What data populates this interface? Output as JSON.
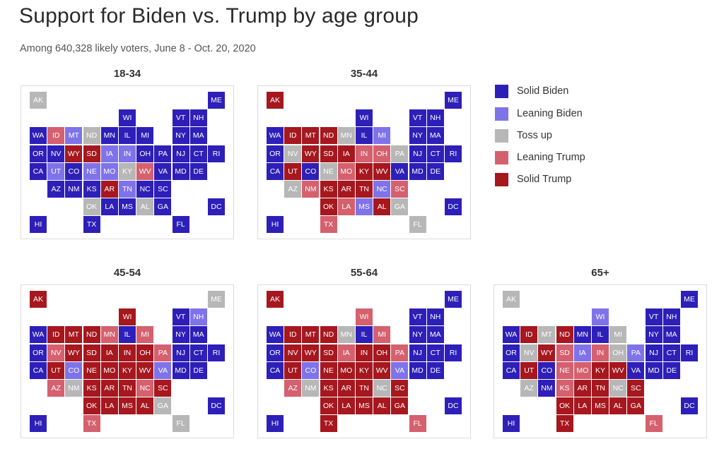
{
  "title": "Support for Biden vs. Trump by age group",
  "subtitle": "Among 640,328 likely voters, June 8 - Oct. 20, 2020",
  "legend": [
    {
      "key": "SB",
      "label": "Solid Biden",
      "color": "#2d1fb8"
    },
    {
      "key": "LB",
      "label": "Leaning Biden",
      "color": "#7f73ea"
    },
    {
      "key": "TU",
      "label": "Toss up",
      "color": "#b7b7b7"
    },
    {
      "key": "LT",
      "label": "Leaning Trump",
      "color": "#d5606e"
    },
    {
      "key": "ST",
      "label": "Solid Trump",
      "color": "#a6171e"
    }
  ],
  "chart_data": {
    "type": "tile-map",
    "row_layout": [
      [
        "AK",
        "",
        "",
        "",
        "",
        "",
        "",
        "",
        "",
        "",
        "ME"
      ],
      [
        "",
        "",
        "",
        "",
        "",
        "WI",
        "",
        "",
        "VT",
        "NH",
        ""
      ],
      [
        "WA",
        "ID",
        "MT",
        "ND",
        "MN",
        "IL",
        "MI",
        "",
        "NY",
        "MA",
        ""
      ],
      [
        "OR",
        "NV",
        "WY",
        "SD",
        "IA",
        "IN",
        "OH",
        "PA",
        "NJ",
        "CT",
        "RI"
      ],
      [
        "CA",
        "UT",
        "CO",
        "NE",
        "MO",
        "KY",
        "WV",
        "VA",
        "MD",
        "DE",
        ""
      ],
      [
        "",
        "AZ",
        "NM",
        "KS",
        "AR",
        "TN",
        "NC",
        "SC",
        "",
        "",
        ""
      ],
      [
        "",
        "",
        "",
        "OK",
        "LA",
        "MS",
        "AL",
        "GA",
        "",
        "",
        "DC"
      ],
      [
        "HI",
        "",
        "",
        "TX",
        "",
        "",
        "",
        "",
        "FL",
        "",
        ""
      ]
    ],
    "panels": [
      {
        "label": "18-34",
        "ratings": {
          "AK": "TU",
          "ME": "SB",
          "WI": "SB",
          "VT": "SB",
          "NH": "SB",
          "WA": "SB",
          "ID": "LT",
          "MT": "LB",
          "ND": "TU",
          "MN": "SB",
          "IL": "SB",
          "MI": "SB",
          "NY": "SB",
          "MA": "SB",
          "OR": "SB",
          "NV": "SB",
          "WY": "ST",
          "SD": "ST",
          "IA": "LB",
          "IN": "LB",
          "OH": "SB",
          "PA": "SB",
          "NJ": "SB",
          "CT": "SB",
          "RI": "SB",
          "CA": "SB",
          "UT": "LB",
          "CO": "SB",
          "NE": "LB",
          "MO": "LB",
          "KY": "TU",
          "WV": "LT",
          "VA": "SB",
          "MD": "SB",
          "DE": "SB",
          "AZ": "SB",
          "NM": "SB",
          "KS": "SB",
          "AR": "ST",
          "TN": "LB",
          "NC": "SB",
          "SC": "SB",
          "OK": "TU",
          "LA": "SB",
          "MS": "SB",
          "AL": "TU",
          "GA": "SB",
          "DC": "SB",
          "HI": "SB",
          "TX": "SB",
          "FL": "SB"
        }
      },
      {
        "label": "35-44",
        "ratings": {
          "AK": "ST",
          "ME": "SB",
          "WI": "SB",
          "VT": "SB",
          "NH": "SB",
          "WA": "SB",
          "ID": "ST",
          "MT": "ST",
          "ND": "ST",
          "MN": "TU",
          "IL": "SB",
          "MI": "LB",
          "NY": "SB",
          "MA": "SB",
          "OR": "SB",
          "NV": "TU",
          "WY": "ST",
          "SD": "ST",
          "IA": "ST",
          "IN": "LT",
          "OH": "LT",
          "PA": "TU",
          "NJ": "SB",
          "CT": "SB",
          "RI": "SB",
          "CA": "SB",
          "UT": "ST",
          "CO": "SB",
          "NE": "TU",
          "MO": "LT",
          "KY": "ST",
          "WV": "ST",
          "VA": "SB",
          "MD": "SB",
          "DE": "SB",
          "AZ": "TU",
          "NM": "LT",
          "KS": "ST",
          "AR": "ST",
          "TN": "ST",
          "NC": "LB",
          "SC": "LT",
          "OK": "ST",
          "LA": "LT",
          "MS": "LB",
          "AL": "ST",
          "GA": "TU",
          "DC": "SB",
          "HI": "SB",
          "TX": "LT",
          "FL": "TU"
        }
      },
      {
        "label": "45-54",
        "ratings": {
          "AK": "ST",
          "ME": "TU",
          "WI": "ST",
          "VT": "SB",
          "NH": "LB",
          "WA": "SB",
          "ID": "ST",
          "MT": "ST",
          "ND": "ST",
          "MN": "LT",
          "IL": "SB",
          "MI": "LT",
          "NY": "SB",
          "MA": "SB",
          "OR": "SB",
          "NV": "LT",
          "WY": "ST",
          "SD": "ST",
          "IA": "ST",
          "IN": "ST",
          "OH": "ST",
          "PA": "LT",
          "NJ": "SB",
          "CT": "SB",
          "RI": "SB",
          "CA": "SB",
          "UT": "ST",
          "CO": "LB",
          "NE": "ST",
          "MO": "ST",
          "KY": "ST",
          "WV": "ST",
          "VA": "LB",
          "MD": "SB",
          "DE": "SB",
          "AZ": "LT",
          "NM": "TU",
          "KS": "ST",
          "AR": "ST",
          "TN": "ST",
          "NC": "LT",
          "SC": "ST",
          "OK": "ST",
          "LA": "ST",
          "MS": "ST",
          "AL": "ST",
          "GA": "TU",
          "DC": "SB",
          "HI": "SB",
          "TX": "LT",
          "FL": "TU"
        }
      },
      {
        "label": "55-64",
        "ratings": {
          "AK": "ST",
          "ME": "SB",
          "WI": "LT",
          "VT": "SB",
          "NH": "SB",
          "WA": "SB",
          "ID": "ST",
          "MT": "ST",
          "ND": "ST",
          "MN": "TU",
          "IL": "SB",
          "MI": "LT",
          "NY": "SB",
          "MA": "SB",
          "OR": "SB",
          "NV": "ST",
          "WY": "ST",
          "SD": "ST",
          "IA": "LT",
          "IN": "ST",
          "OH": "ST",
          "PA": "LT",
          "NJ": "SB",
          "CT": "SB",
          "RI": "SB",
          "CA": "SB",
          "UT": "ST",
          "CO": "LB",
          "NE": "ST",
          "MO": "ST",
          "KY": "ST",
          "WV": "ST",
          "VA": "LB",
          "MD": "SB",
          "DE": "SB",
          "AZ": "LT",
          "NM": "TU",
          "KS": "ST",
          "AR": "ST",
          "TN": "ST",
          "NC": "TU",
          "SC": "ST",
          "OK": "ST",
          "LA": "ST",
          "MS": "ST",
          "AL": "ST",
          "GA": "ST",
          "DC": "SB",
          "HI": "SB",
          "TX": "ST",
          "FL": "LT"
        }
      },
      {
        "label": "65+",
        "ratings": {
          "AK": "TU",
          "ME": "SB",
          "WI": "LB",
          "VT": "SB",
          "NH": "SB",
          "WA": "SB",
          "ID": "ST",
          "MT": "TU",
          "ND": "ST",
          "MN": "SB",
          "IL": "SB",
          "MI": "TU",
          "NY": "SB",
          "MA": "SB",
          "OR": "SB",
          "NV": "TU",
          "WY": "ST",
          "SD": "LT",
          "IA": "LB",
          "IN": "LT",
          "OH": "TU",
          "PA": "LB",
          "NJ": "SB",
          "CT": "SB",
          "RI": "SB",
          "CA": "SB",
          "UT": "ST",
          "CO": "SB",
          "NE": "LT",
          "MO": "LT",
          "KY": "ST",
          "WV": "ST",
          "VA": "SB",
          "MD": "SB",
          "DE": "SB",
          "AZ": "TU",
          "NM": "SB",
          "KS": "LT",
          "AR": "ST",
          "TN": "ST",
          "NC": "TU",
          "SC": "ST",
          "OK": "ST",
          "LA": "ST",
          "MS": "ST",
          "AL": "ST",
          "GA": "ST",
          "DC": "SB",
          "HI": "SB",
          "TX": "ST",
          "FL": "LT"
        }
      }
    ]
  }
}
